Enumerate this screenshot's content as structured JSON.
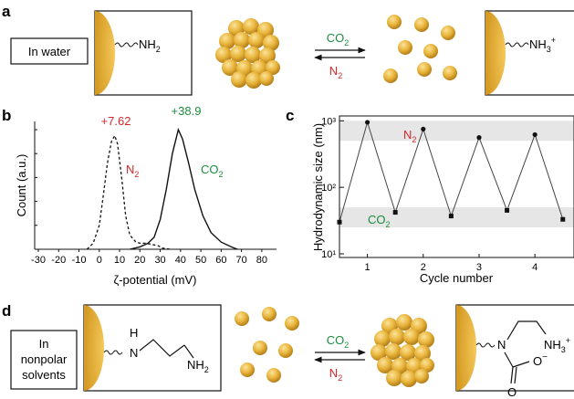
{
  "panels": {
    "a": {
      "letter": "a",
      "condition_label": "In water",
      "left_group": "NH",
      "left_group_sub": "2",
      "right_group": "NH",
      "right_group_sub": "3",
      "right_group_sup": "+",
      "forward_gas": "CO",
      "forward_gas_sub": "2",
      "reverse_gas": "N",
      "reverse_gas_sub": "2"
    },
    "b": {
      "letter": "b",
      "peak_n2_label": "+7.62",
      "peak_co2_label": "+38.9",
      "curve_n2_label": "N",
      "curve_n2_sub": "2",
      "curve_co2_label": "CO",
      "curve_co2_sub": "2"
    },
    "c": {
      "letter": "c",
      "band_n2_label": "N",
      "band_n2_sub": "2",
      "band_co2_label": "CO",
      "band_co2_sub": "2"
    },
    "d": {
      "letter": "d",
      "condition_line1": "In",
      "condition_line2": "nonpolar",
      "condition_line3": "solvents",
      "left_nh": "H",
      "left_n": "N",
      "left_nh2": "NH",
      "left_nh2_sub": "2",
      "right_nh3": "NH",
      "right_nh3_sub": "3",
      "right_nh3_sup": "+",
      "right_n": "N",
      "right_o": "O",
      "right_o_minus": "O",
      "right_o_minus_sup": "−",
      "forward_gas": "CO",
      "forward_gas_sub": "2",
      "reverse_gas": "N",
      "reverse_gas_sub": "2"
    }
  },
  "colors": {
    "co2": "#1a8c3c",
    "n2": "#d6262b",
    "particle": "#e8b43a",
    "band": "#e6e6e6"
  },
  "chart_data": [
    {
      "type": "line",
      "xlabel": "ζ-potential (mV)",
      "ylabel": "Count (a.u.)",
      "xlim": [
        -30,
        85
      ],
      "x_ticks": [
        "-30",
        "-20",
        "-10",
        "0",
        "10",
        "20",
        "30",
        "40",
        "50",
        "60",
        "70",
        "80"
      ],
      "series": [
        {
          "name": "N₂",
          "style": "dashed",
          "x": [
            -6,
            -3,
            0,
            2,
            4,
            6,
            7.62,
            9,
            11,
            13,
            15,
            18,
            20,
            23,
            26,
            29,
            31,
            35
          ],
          "y": [
            0,
            0.05,
            0.2,
            0.45,
            0.72,
            0.9,
            0.95,
            0.88,
            0.6,
            0.28,
            0.12,
            0.06,
            0.05,
            0.05,
            0.04,
            0.03,
            0.01,
            0
          ]
        },
        {
          "name": "CO₂",
          "style": "solid",
          "x": [
            15,
            20,
            24,
            27,
            30,
            33,
            36,
            38.9,
            41,
            44,
            47,
            51,
            55,
            60,
            65,
            68
          ],
          "y": [
            0,
            0.02,
            0.05,
            0.1,
            0.25,
            0.5,
            0.8,
            1.0,
            0.92,
            0.72,
            0.5,
            0.28,
            0.14,
            0.06,
            0.02,
            0
          ]
        }
      ]
    },
    {
      "type": "line",
      "xlabel": "Cycle number",
      "ylabel": "Hydrodynamic size (nm)",
      "yscale": "log",
      "ylim": [
        10,
        1000
      ],
      "y_ticks": [
        "10¹",
        "10²",
        "10³"
      ],
      "x_ticks": [
        "1",
        "2",
        "3",
        "4"
      ],
      "x": [
        0.5,
        1,
        1.5,
        2,
        2.5,
        3,
        3.5,
        4,
        4.5
      ],
      "values": [
        30,
        950,
        42,
        750,
        37,
        560,
        45,
        620,
        33
      ],
      "bands": [
        {
          "label": "N₂",
          "range": [
            500,
            1000
          ]
        },
        {
          "label": "CO₂",
          "range": [
            25,
            50
          ]
        }
      ]
    }
  ]
}
